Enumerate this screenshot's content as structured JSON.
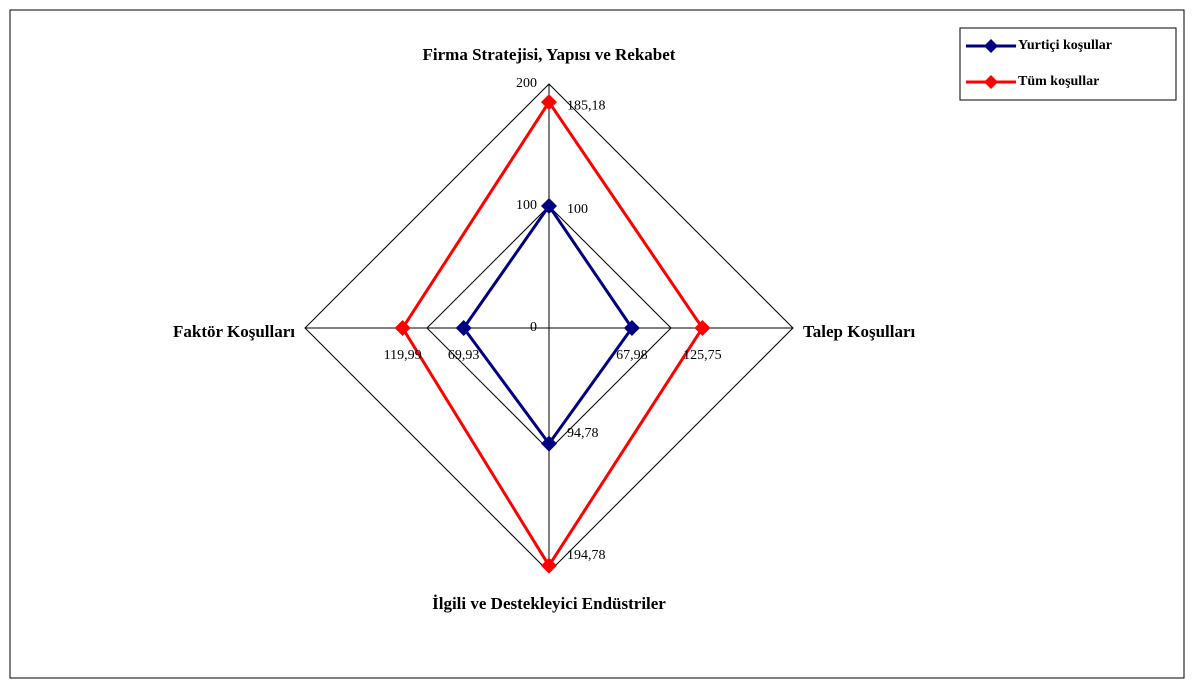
{
  "chart_data": {
    "type": "radar",
    "categories": [
      "Firma Stratejisi, Yapısı ve Rekabet",
      "Talep Koşulları",
      "İlgili ve Destekleyici Endüstriler",
      "Faktör Koşulları"
    ],
    "series": [
      {
        "name": "Yurtiçi koşullar",
        "color": "#000080",
        "values": [
          100,
          67.98,
          94.78,
          69.93
        ],
        "value_labels": [
          "100",
          "67,98",
          "94,78",
          "69,93"
        ]
      },
      {
        "name": "Tüm koşullar",
        "color": "#ff0000",
        "values": [
          185.18,
          125.75,
          194.78,
          119.99
        ],
        "value_labels": [
          "185,18",
          "125,75",
          "194,78",
          "119,99"
        ]
      }
    ],
    "ylim": [
      0,
      200
    ],
    "yticks": [
      0,
      100,
      200
    ],
    "grid": true,
    "legend": "upper right"
  }
}
